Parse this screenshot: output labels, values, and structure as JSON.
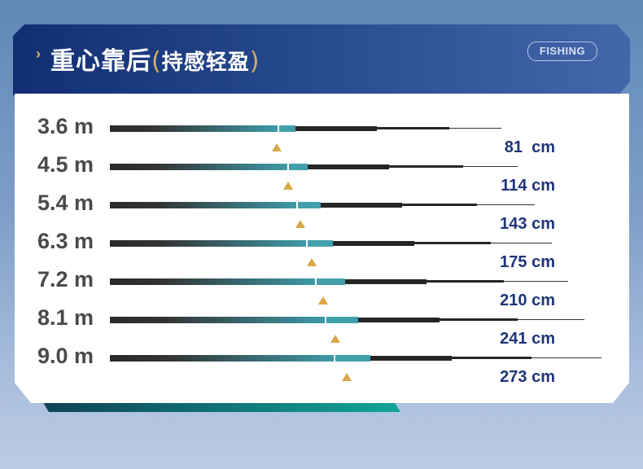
{
  "header": {
    "title": "重心靠后",
    "subtitle": "持感轻盈",
    "paren_open": "(",
    "paren_close": ")",
    "badge": "FISHING",
    "chevron": "›"
  },
  "rows": [
    {
      "length": "3.6 m",
      "balance": "81  cm"
    },
    {
      "length": "4.5 m",
      "balance": "114 cm"
    },
    {
      "length": "5.4 m",
      "balance": "143 cm"
    },
    {
      "length": "6.3 m",
      "balance": "175 cm"
    },
    {
      "length": "7.2 m",
      "balance": "210 cm"
    },
    {
      "length": "8.1 m",
      "balance": "241 cm"
    },
    {
      "length": "9.0 m",
      "balance": "273 cm"
    }
  ],
  "colors": {
    "accent": "#d9a846",
    "header": "#1b3a80",
    "value_text": "#1f3479",
    "rod_teal": "#3e9aa8"
  }
}
